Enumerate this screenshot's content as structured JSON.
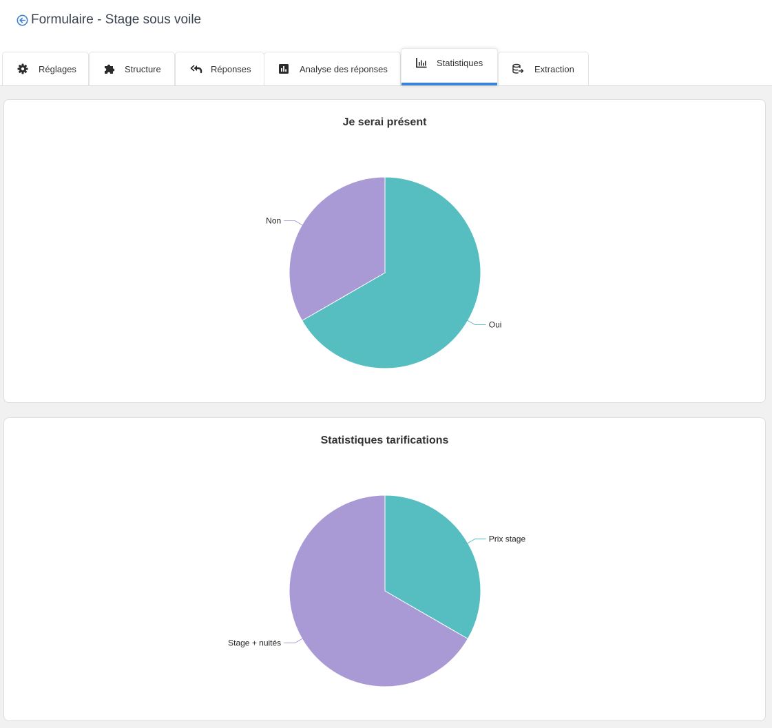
{
  "header": {
    "title": "Formulaire - Stage sous voile",
    "back_icon": "arrow-left-circle-icon",
    "accent_color": "#3b82d8"
  },
  "tabs": [
    {
      "label": "Réglages",
      "icon": "gear-icon",
      "active": false
    },
    {
      "label": "Structure",
      "icon": "puzzle-icon",
      "active": false
    },
    {
      "label": "Réponses",
      "icon": "reply-all-icon",
      "active": false
    },
    {
      "label": "Analyse des réponses",
      "icon": "poll-icon",
      "active": false
    },
    {
      "label": "Statistiques",
      "icon": "bar-chart-icon",
      "active": true
    },
    {
      "label": "Extraction",
      "icon": "database-export-icon",
      "active": false
    }
  ],
  "chart_data": [
    {
      "type": "pie",
      "title": "Je serai présent",
      "categories": [
        "Oui",
        "Non"
      ],
      "values": [
        2,
        1
      ],
      "colors": [
        "#56bdc1",
        "#a99ad6"
      ]
    },
    {
      "type": "pie",
      "title": "Statistiques tarifications",
      "categories": [
        "Prix stage",
        "Stage + nuités"
      ],
      "values": [
        1,
        2
      ],
      "colors": [
        "#56bdc1",
        "#a99ad6"
      ]
    }
  ]
}
